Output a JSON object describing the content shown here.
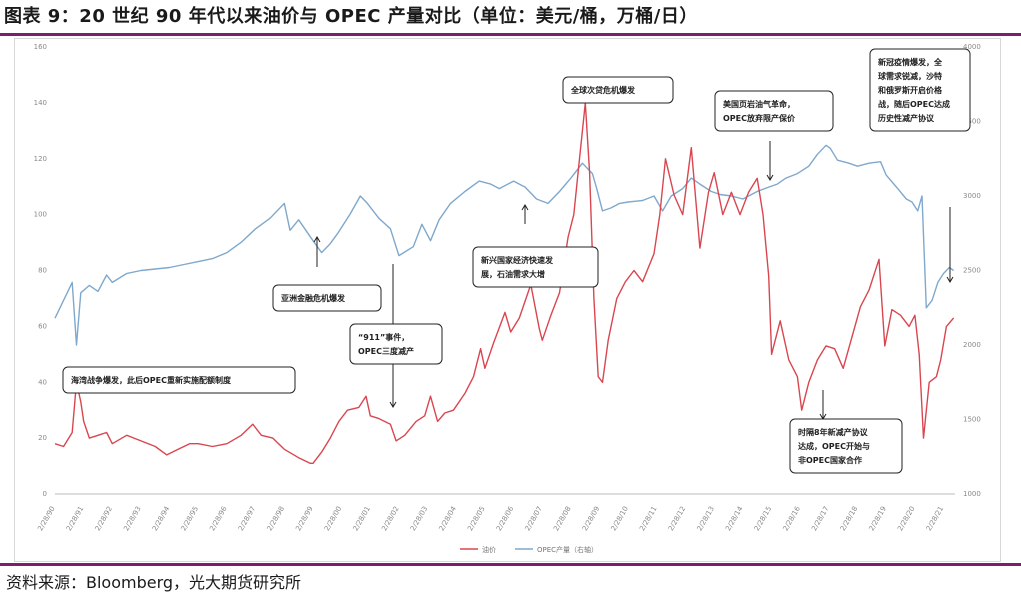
{
  "header": {
    "title": "图表 9：20 世纪 90 年代以来油价与 OPEC 产量对比（单位：美元/桶，万桶/日）"
  },
  "footer": {
    "source": "资料来源：Bloomberg，光大期货研究所"
  },
  "colors": {
    "oil": "#d9464f",
    "opec": "#7fa8cc",
    "accent_rule": "#7a1f6e"
  },
  "chart_data": {
    "type": "line",
    "title": "",
    "xlabel": "",
    "ylabel": "",
    "y2label": "",
    "ylim": [
      0,
      160
    ],
    "y2lim": [
      1000,
      4000
    ],
    "yticks": [
      "0",
      "20",
      "40",
      "60",
      "80",
      "100",
      "120",
      "140",
      "160"
    ],
    "y2ticks": [
      "1000",
      "1500",
      "2000",
      "2500",
      "3000",
      "3500",
      "4000"
    ],
    "xticks": [
      "2/28/90",
      "2/28/91",
      "2/28/92",
      "2/28/93",
      "2/28/94",
      "2/28/95",
      "2/28/96",
      "2/28/97",
      "2/28/98",
      "2/28/99",
      "2/28/00",
      "2/28/01",
      "2/28/02",
      "2/28/03",
      "2/28/04",
      "2/28/05",
      "2/28/06",
      "2/28/07",
      "2/28/08",
      "2/28/09",
      "2/28/10",
      "2/28/11",
      "2/28/12",
      "2/28/13",
      "2/28/14",
      "2/28/15",
      "2/28/16",
      "2/28/17",
      "2/28/18",
      "2/28/19",
      "2/28/20",
      "2/28/21"
    ],
    "grid": false,
    "legend_position": "bottom-center",
    "series": [
      {
        "name": "油价",
        "axis": "left",
        "points": [
          [
            1990.0,
            18
          ],
          [
            1990.3,
            17
          ],
          [
            1990.6,
            22
          ],
          [
            1990.75,
            40
          ],
          [
            1990.9,
            33
          ],
          [
            1991.0,
            26
          ],
          [
            1991.2,
            20
          ],
          [
            1991.5,
            21
          ],
          [
            1991.8,
            22
          ],
          [
            1992.0,
            18
          ],
          [
            1992.5,
            21
          ],
          [
            1993.0,
            19
          ],
          [
            1993.5,
            17
          ],
          [
            1993.9,
            14
          ],
          [
            1994.3,
            16
          ],
          [
            1994.7,
            18
          ],
          [
            1995.0,
            18
          ],
          [
            1995.5,
            17
          ],
          [
            1996.0,
            18
          ],
          [
            1996.5,
            21
          ],
          [
            1996.9,
            25
          ],
          [
            1997.2,
            21
          ],
          [
            1997.6,
            20
          ],
          [
            1998.0,
            16
          ],
          [
            1998.5,
            13
          ],
          [
            1998.9,
            11
          ],
          [
            1999.0,
            11
          ],
          [
            1999.3,
            15
          ],
          [
            1999.6,
            20
          ],
          [
            1999.9,
            26
          ],
          [
            2000.2,
            30
          ],
          [
            2000.6,
            31
          ],
          [
            2000.85,
            35
          ],
          [
            2001.0,
            28
          ],
          [
            2001.3,
            27
          ],
          [
            2001.7,
            25
          ],
          [
            2001.9,
            19
          ],
          [
            2002.2,
            21
          ],
          [
            2002.6,
            26
          ],
          [
            2002.9,
            28
          ],
          [
            2003.1,
            35
          ],
          [
            2003.35,
            26
          ],
          [
            2003.6,
            29
          ],
          [
            2003.9,
            30
          ],
          [
            2004.3,
            36
          ],
          [
            2004.6,
            42
          ],
          [
            2004.85,
            52
          ],
          [
            2005.0,
            45
          ],
          [
            2005.3,
            54
          ],
          [
            2005.7,
            65
          ],
          [
            2005.9,
            58
          ],
          [
            2006.2,
            63
          ],
          [
            2006.6,
            75
          ],
          [
            2006.9,
            59
          ],
          [
            2007.0,
            55
          ],
          [
            2007.3,
            64
          ],
          [
            2007.6,
            72
          ],
          [
            2007.9,
            92
          ],
          [
            2008.1,
            100
          ],
          [
            2008.3,
            120
          ],
          [
            2008.5,
            140
          ],
          [
            2008.65,
            115
          ],
          [
            2008.8,
            70
          ],
          [
            2008.95,
            42
          ],
          [
            2009.1,
            40
          ],
          [
            2009.3,
            55
          ],
          [
            2009.6,
            70
          ],
          [
            2009.9,
            76
          ],
          [
            2010.2,
            80
          ],
          [
            2010.5,
            76
          ],
          [
            2010.9,
            86
          ],
          [
            2011.1,
            100
          ],
          [
            2011.3,
            120
          ],
          [
            2011.6,
            107
          ],
          [
            2011.9,
            100
          ],
          [
            2012.2,
            124
          ],
          [
            2012.5,
            88
          ],
          [
            2012.8,
            108
          ],
          [
            2013.0,
            115
          ],
          [
            2013.3,
            100
          ],
          [
            2013.6,
            108
          ],
          [
            2013.9,
            100
          ],
          [
            2014.2,
            108
          ],
          [
            2014.5,
            113
          ],
          [
            2014.7,
            100
          ],
          [
            2014.9,
            78
          ],
          [
            2015.0,
            50
          ],
          [
            2015.3,
            62
          ],
          [
            2015.6,
            48
          ],
          [
            2015.9,
            42
          ],
          [
            2016.05,
            30
          ],
          [
            2016.3,
            40
          ],
          [
            2016.6,
            48
          ],
          [
            2016.9,
            53
          ],
          [
            2017.2,
            52
          ],
          [
            2017.5,
            45
          ],
          [
            2017.8,
            56
          ],
          [
            2018.1,
            67
          ],
          [
            2018.4,
            73
          ],
          [
            2018.75,
            84
          ],
          [
            2018.95,
            53
          ],
          [
            2019.2,
            66
          ],
          [
            2019.5,
            64
          ],
          [
            2019.8,
            60
          ],
          [
            2020.0,
            64
          ],
          [
            2020.15,
            50
          ],
          [
            2020.3,
            20
          ],
          [
            2020.5,
            40
          ],
          [
            2020.75,
            42
          ],
          [
            2020.9,
            48
          ],
          [
            2021.1,
            60
          ],
          [
            2021.35,
            63
          ]
        ]
      },
      {
        "name": "OPEC产量（右轴）",
        "axis": "right",
        "points": [
          [
            1990.0,
            2180
          ],
          [
            1990.3,
            2300
          ],
          [
            1990.6,
            2420
          ],
          [
            1990.75,
            2000
          ],
          [
            1990.9,
            2350
          ],
          [
            1991.2,
            2400
          ],
          [
            1991.5,
            2360
          ],
          [
            1991.8,
            2470
          ],
          [
            1992.0,
            2420
          ],
          [
            1992.5,
            2480
          ],
          [
            1993.0,
            2500
          ],
          [
            1993.5,
            2510
          ],
          [
            1994.0,
            2520
          ],
          [
            1994.5,
            2540
          ],
          [
            1995.0,
            2560
          ],
          [
            1995.5,
            2580
          ],
          [
            1996.0,
            2620
          ],
          [
            1996.5,
            2690
          ],
          [
            1997.0,
            2780
          ],
          [
            1997.5,
            2850
          ],
          [
            1998.0,
            2950
          ],
          [
            1998.2,
            2770
          ],
          [
            1998.5,
            2840
          ],
          [
            1999.0,
            2700
          ],
          [
            1999.3,
            2620
          ],
          [
            1999.6,
            2680
          ],
          [
            1999.9,
            2760
          ],
          [
            2000.3,
            2880
          ],
          [
            2000.65,
            3000
          ],
          [
            2000.9,
            2950
          ],
          [
            2001.3,
            2850
          ],
          [
            2001.7,
            2780
          ],
          [
            2002.0,
            2600
          ],
          [
            2002.5,
            2660
          ],
          [
            2002.8,
            2810
          ],
          [
            2003.1,
            2700
          ],
          [
            2003.4,
            2840
          ],
          [
            2003.8,
            2950
          ],
          [
            2004.3,
            3030
          ],
          [
            2004.8,
            3100
          ],
          [
            2005.2,
            3080
          ],
          [
            2005.5,
            3050
          ],
          [
            2006.0,
            3100
          ],
          [
            2006.4,
            3060
          ],
          [
            2006.8,
            2980
          ],
          [
            2007.2,
            2950
          ],
          [
            2007.6,
            3030
          ],
          [
            2008.0,
            3120
          ],
          [
            2008.4,
            3220
          ],
          [
            2008.75,
            3150
          ],
          [
            2008.9,
            3050
          ],
          [
            2009.1,
            2900
          ],
          [
            2009.4,
            2920
          ],
          [
            2009.7,
            2950
          ],
          [
            2010.0,
            2960
          ],
          [
            2010.5,
            2970
          ],
          [
            2010.9,
            3000
          ],
          [
            2011.2,
            2900
          ],
          [
            2011.5,
            3000
          ],
          [
            2011.9,
            3050
          ],
          [
            2012.2,
            3120
          ],
          [
            2012.5,
            3080
          ],
          [
            2012.9,
            3030
          ],
          [
            2013.2,
            3010
          ],
          [
            2013.6,
            3000
          ],
          [
            2014.0,
            2980
          ],
          [
            2014.5,
            3030
          ],
          [
            2014.9,
            3060
          ],
          [
            2015.2,
            3080
          ],
          [
            2015.5,
            3120
          ],
          [
            2015.9,
            3150
          ],
          [
            2016.3,
            3200
          ],
          [
            2016.6,
            3280
          ],
          [
            2016.9,
            3340
          ],
          [
            2017.05,
            3320
          ],
          [
            2017.3,
            3240
          ],
          [
            2017.7,
            3220
          ],
          [
            2018.0,
            3200
          ],
          [
            2018.4,
            3220
          ],
          [
            2018.8,
            3230
          ],
          [
            2019.0,
            3140
          ],
          [
            2019.4,
            3050
          ],
          [
            2019.7,
            2980
          ],
          [
            2019.9,
            2960
          ],
          [
            2020.1,
            2900
          ],
          [
            2020.25,
            3000
          ],
          [
            2020.4,
            2250
          ],
          [
            2020.6,
            2300
          ],
          [
            2020.8,
            2420
          ],
          [
            2021.0,
            2480
          ],
          [
            2021.2,
            2520
          ],
          [
            2021.35,
            2500
          ]
        ]
      }
    ],
    "annotations": [
      {
        "lines": [
          "海湾战争爆发，此后OPEC重新实施配额制度"
        ],
        "x": 1990.75,
        "y": 40,
        "arrow": false
      },
      {
        "lines": [
          "亚洲金融危机爆发"
        ],
        "x": 1998.0,
        "y": 16,
        "arrow": true
      },
      {
        "lines": [
          "“911”事件，",
          "OPEC三度减产"
        ],
        "x": 2001.0,
        "y": 30,
        "arrow": true
      },
      {
        "lines": [
          "新兴国家经济快速发",
          "展，石油需求大增"
        ],
        "x": 2005.5,
        "y": 85,
        "arrow": true
      },
      {
        "lines": [
          "全球次贷危机爆发"
        ],
        "x": 2008.5,
        "y": 140,
        "arrow": false
      },
      {
        "lines": [
          "美国页岩油气革命，",
          "OPEC放弃限产保价"
        ],
        "x": 2014.0,
        "y": 115,
        "arrow": true
      },
      {
        "lines": [
          "时隔8年新减产协议",
          "达成，OPEC开始与",
          "非OPEC国家合作"
        ],
        "x": 2016.05,
        "y": 30,
        "arrow": true
      },
      {
        "lines": [
          "新冠疫情爆发，全",
          "球需求锐减，沙特",
          "和俄罗斯开启价格",
          "战，随后OPEC达成",
          "历史性减产协议"
        ],
        "x": 2020.3,
        "y": 20,
        "arrow": true
      }
    ]
  }
}
